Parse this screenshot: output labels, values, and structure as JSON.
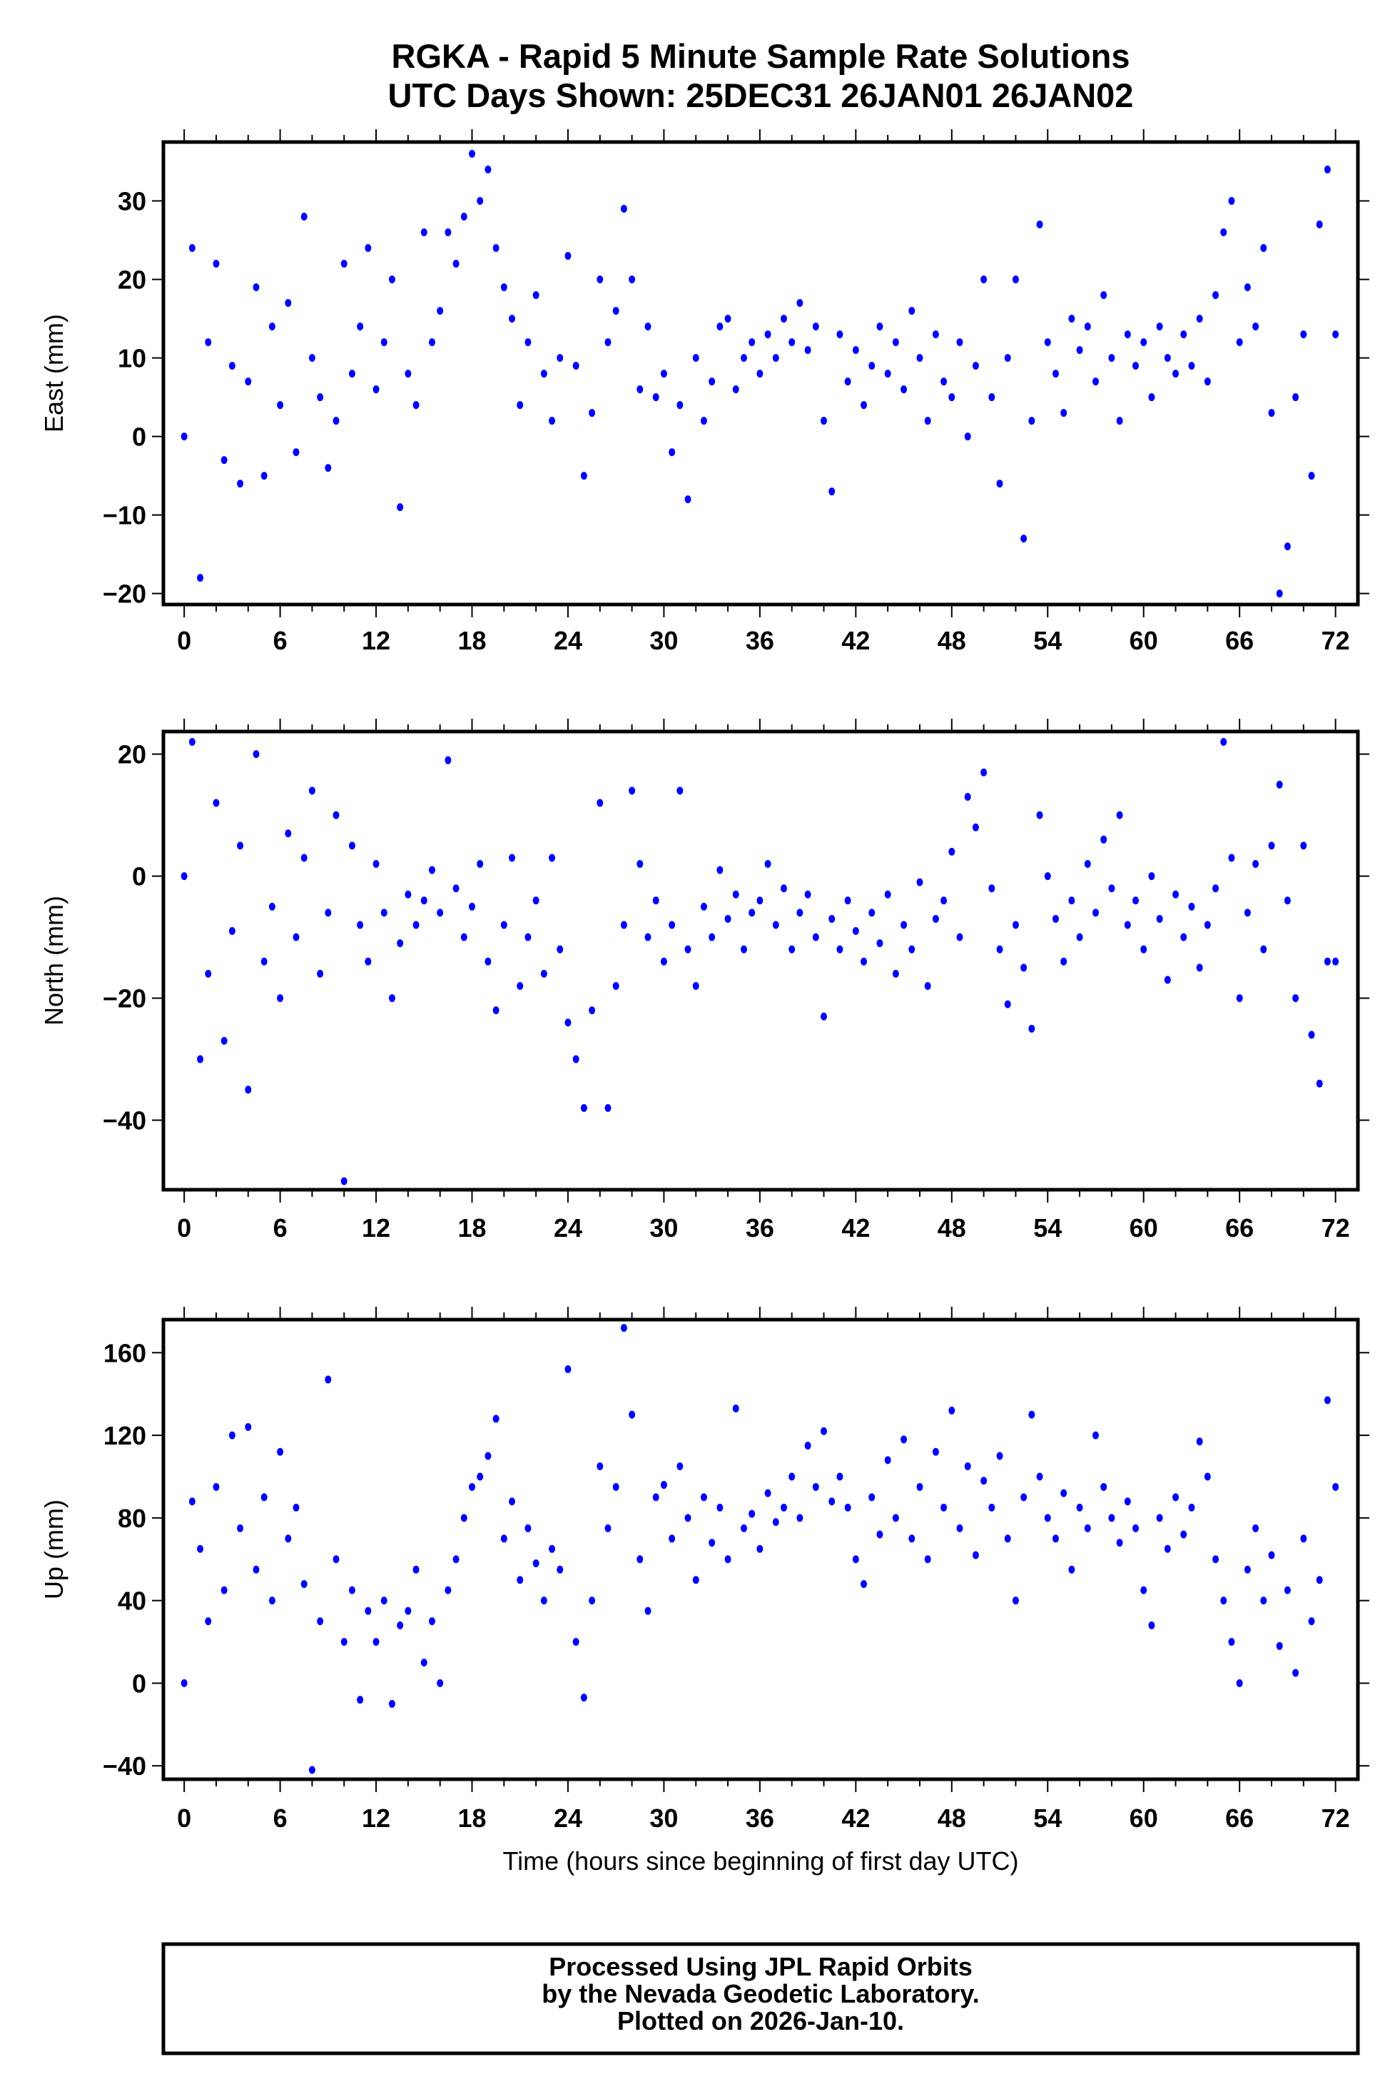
{
  "chart_data": {
    "type": "scatter",
    "title": "RGKA - Rapid 5 Minute Sample Rate Solutions",
    "subtitle": "UTC Days Shown:  25DEC31 26JAN01 26JAN02",
    "xlabel": "Time (hours since beginning of first day UTC)",
    "xlim": [
      -1.3,
      73.4
    ],
    "x_ticks": [
      0,
      6,
      12,
      18,
      24,
      30,
      36,
      42,
      48,
      54,
      60,
      66,
      72
    ],
    "x_start": 0,
    "x_step": 0.5,
    "point_color": "#0000ff",
    "grid": false,
    "panels": [
      {
        "name": "east",
        "ylabel": "East (mm)",
        "ylim": [
          -21.4,
          37.5
        ],
        "y_ticks": [
          -20,
          -10,
          0,
          10,
          20,
          30
        ],
        "values": [
          0,
          24,
          -18,
          12,
          22,
          -3,
          9,
          -6,
          7,
          19,
          -5,
          14,
          4,
          17,
          -2,
          28,
          10,
          5,
          -4,
          2,
          22,
          8,
          14,
          24,
          6,
          12,
          20,
          -9,
          8,
          4,
          26,
          12,
          16,
          26,
          22,
          28,
          36,
          30,
          34,
          24,
          19,
          15,
          4,
          12,
          18,
          8,
          2,
          10,
          23,
          9,
          -5,
          3,
          20,
          12,
          16,
          29,
          20,
          6,
          14,
          5,
          8,
          -2,
          4,
          -8,
          10,
          2,
          7,
          14,
          15,
          6,
          10,
          12,
          8,
          13,
          10,
          15,
          12,
          17,
          11,
          14,
          2,
          -7,
          13,
          7,
          11,
          4,
          9,
          14,
          8,
          12,
          6,
          16,
          10,
          2,
          13,
          7,
          5,
          12,
          0,
          9,
          20,
          5,
          -6,
          10,
          20,
          -13,
          2,
          27,
          12,
          8,
          3,
          15,
          11,
          14,
          7,
          18,
          10,
          2,
          13,
          9,
          12,
          5,
          14,
          10,
          8,
          13,
          9,
          15,
          7,
          18,
          26,
          30,
          12,
          19,
          14,
          24,
          3,
          -20,
          -14,
          5,
          13,
          -5,
          27,
          34,
          13
        ]
      },
      {
        "name": "north",
        "ylabel": "North (mm)",
        "ylim": [
          -51.4,
          23.7
        ],
        "y_ticks": [
          -40,
          -20,
          0,
          20
        ],
        "values": [
          0,
          22,
          -30,
          -16,
          12,
          -27,
          -9,
          5,
          -35,
          20,
          -14,
          -5,
          -20,
          7,
          -10,
          3,
          14,
          -16,
          -6,
          10,
          -50,
          5,
          -8,
          -14,
          2,
          -6,
          -20,
          -11,
          -3,
          -8,
          -4,
          1,
          -6,
          19,
          -2,
          -10,
          -5,
          2,
          -14,
          -22,
          -8,
          3,
          -18,
          -10,
          -4,
          -16,
          3,
          -12,
          -24,
          -30,
          -38,
          -22,
          12,
          -38,
          -18,
          -8,
          14,
          2,
          -10,
          -4,
          -14,
          -8,
          14,
          -12,
          -18,
          -5,
          -10,
          1,
          -7,
          -3,
          -12,
          -6,
          -4,
          2,
          -8,
          -2,
          -12,
          -6,
          -3,
          -10,
          -23,
          -7,
          -12,
          -4,
          -9,
          -14,
          -6,
          -11,
          -3,
          -16,
          -8,
          -12,
          -1,
          -18,
          -7,
          -4,
          4,
          -10,
          13,
          8,
          17,
          -2,
          -12,
          -21,
          -8,
          -15,
          -25,
          10,
          0,
          -7,
          -14,
          -4,
          -10,
          2,
          -6,
          6,
          -2,
          10,
          -8,
          -4,
          -12,
          0,
          -7,
          -17,
          -3,
          -10,
          -5,
          -15,
          -8,
          -2,
          22,
          3,
          -20,
          -6,
          2,
          -12,
          5,
          15,
          -4,
          -20,
          5,
          -26,
          -34,
          -14,
          -14
        ]
      },
      {
        "name": "up",
        "ylabel": "Up (mm)",
        "ylim": [
          -46.5,
          176
        ],
        "y_ticks": [
          -40,
          0,
          40,
          80,
          120,
          160
        ],
        "values": [
          0,
          88,
          65,
          30,
          95,
          45,
          120,
          75,
          124,
          55,
          90,
          40,
          112,
          70,
          85,
          48,
          -42,
          30,
          147,
          60,
          20,
          45,
          -8,
          35,
          20,
          40,
          -10,
          28,
          35,
          55,
          10,
          30,
          0,
          45,
          60,
          80,
          95,
          100,
          110,
          128,
          70,
          88,
          50,
          75,
          58,
          40,
          65,
          55,
          152,
          20,
          -7,
          40,
          105,
          75,
          95,
          172,
          130,
          60,
          35,
          90,
          96,
          70,
          105,
          80,
          50,
          90,
          68,
          85,
          60,
          133,
          75,
          82,
          65,
          92,
          78,
          85,
          100,
          80,
          115,
          95,
          122,
          88,
          100,
          85,
          60,
          48,
          90,
          72,
          108,
          80,
          118,
          70,
          95,
          60,
          112,
          85,
          132,
          75,
          105,
          62,
          98,
          85,
          110,
          70,
          40,
          90,
          130,
          100,
          80,
          70,
          92,
          55,
          85,
          75,
          120,
          95,
          80,
          68,
          88,
          75,
          45,
          28,
          80,
          65,
          90,
          72,
          85,
          117,
          100,
          60,
          40,
          20,
          0,
          55,
          75,
          40,
          62,
          18,
          45,
          5,
          70,
          30,
          50,
          137,
          95
        ]
      }
    ],
    "footer": {
      "lines": [
        "Processed Using JPL Rapid Orbits",
        "by the Nevada Geodetic Laboratory.",
        "Plotted on 2026-Jan-10."
      ]
    }
  }
}
